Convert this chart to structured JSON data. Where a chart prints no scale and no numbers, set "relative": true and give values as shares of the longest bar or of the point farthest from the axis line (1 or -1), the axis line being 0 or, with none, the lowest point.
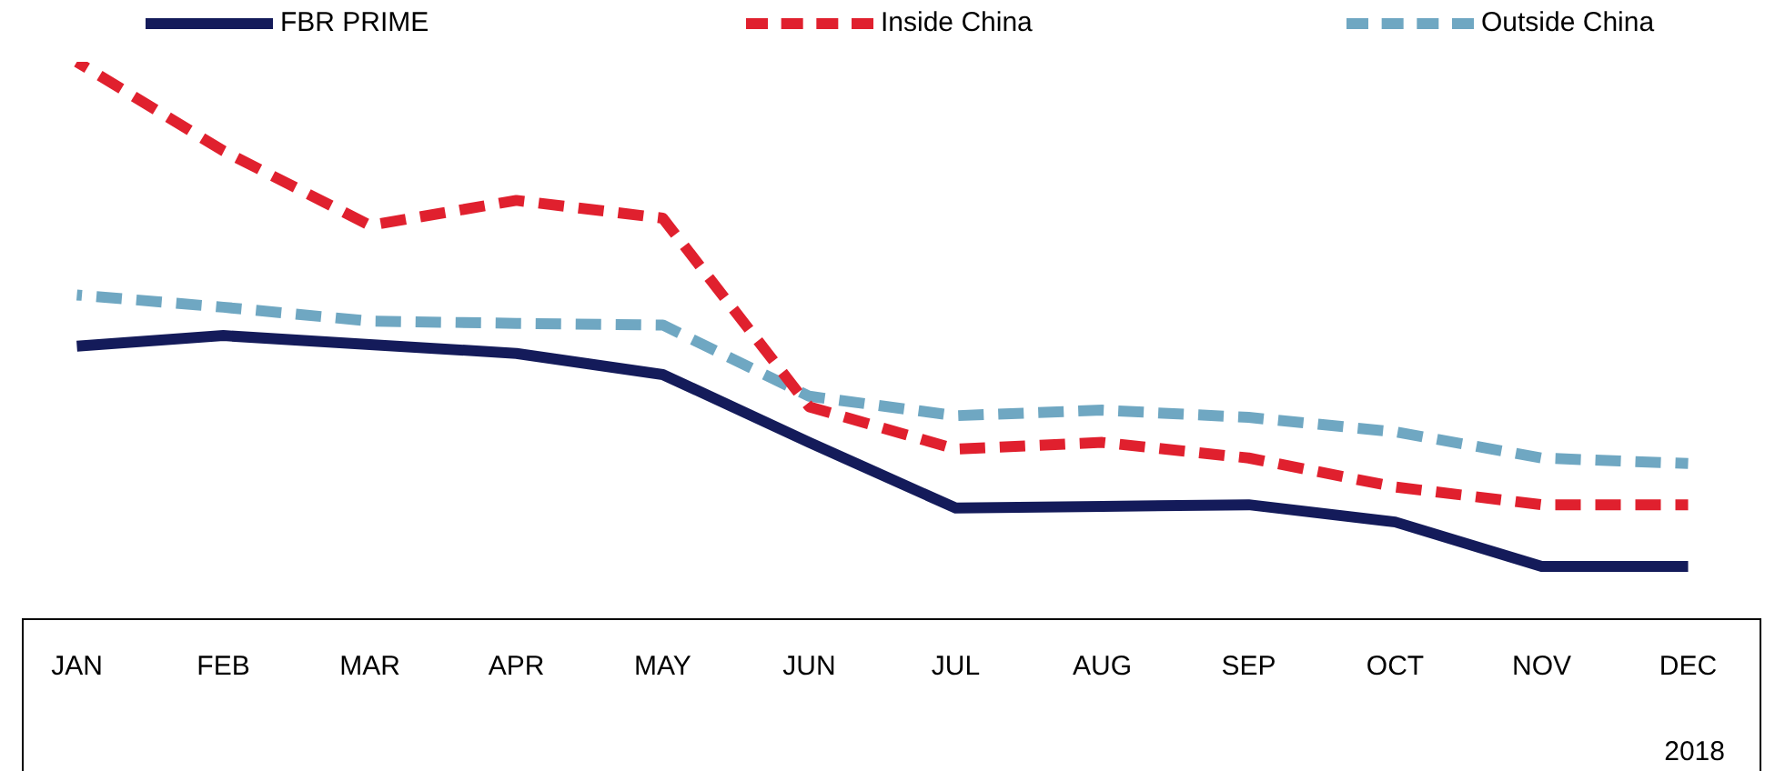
{
  "chart_data": {
    "type": "line",
    "relative": true,
    "categories": [
      "JAN",
      "FEB",
      "MAR",
      "APR",
      "MAY",
      "JUN",
      "JUL",
      "AUG",
      "SEP",
      "OCT",
      "NOV",
      "DEC"
    ],
    "series": [
      {
        "name": "FBR PRIME",
        "color": "#141b5a",
        "line_style": "solid",
        "values": [
          0.489,
          0.508,
          0.492,
          0.476,
          0.438,
          0.316,
          0.198,
          0.201,
          0.204,
          0.173,
          0.093,
          0.093
        ]
      },
      {
        "name": "Inside China",
        "color": "#e0202e",
        "line_style": "dashed",
        "values": [
          1,
          0.84,
          0.706,
          0.751,
          0.719,
          0.38,
          0.304,
          0.316,
          0.288,
          0.236,
          0.204,
          0.204
        ]
      },
      {
        "name": "Outside China",
        "color": "#6fa7c2",
        "line_style": "dashed",
        "values": [
          0.581,
          0.559,
          0.534,
          0.53,
          0.527,
          0.399,
          0.364,
          0.374,
          0.361,
          0.335,
          0.288,
          0.278
        ]
      }
    ],
    "marker": "none",
    "grid": false,
    "legend": "top",
    "annotations": [
      "2018"
    ]
  }
}
